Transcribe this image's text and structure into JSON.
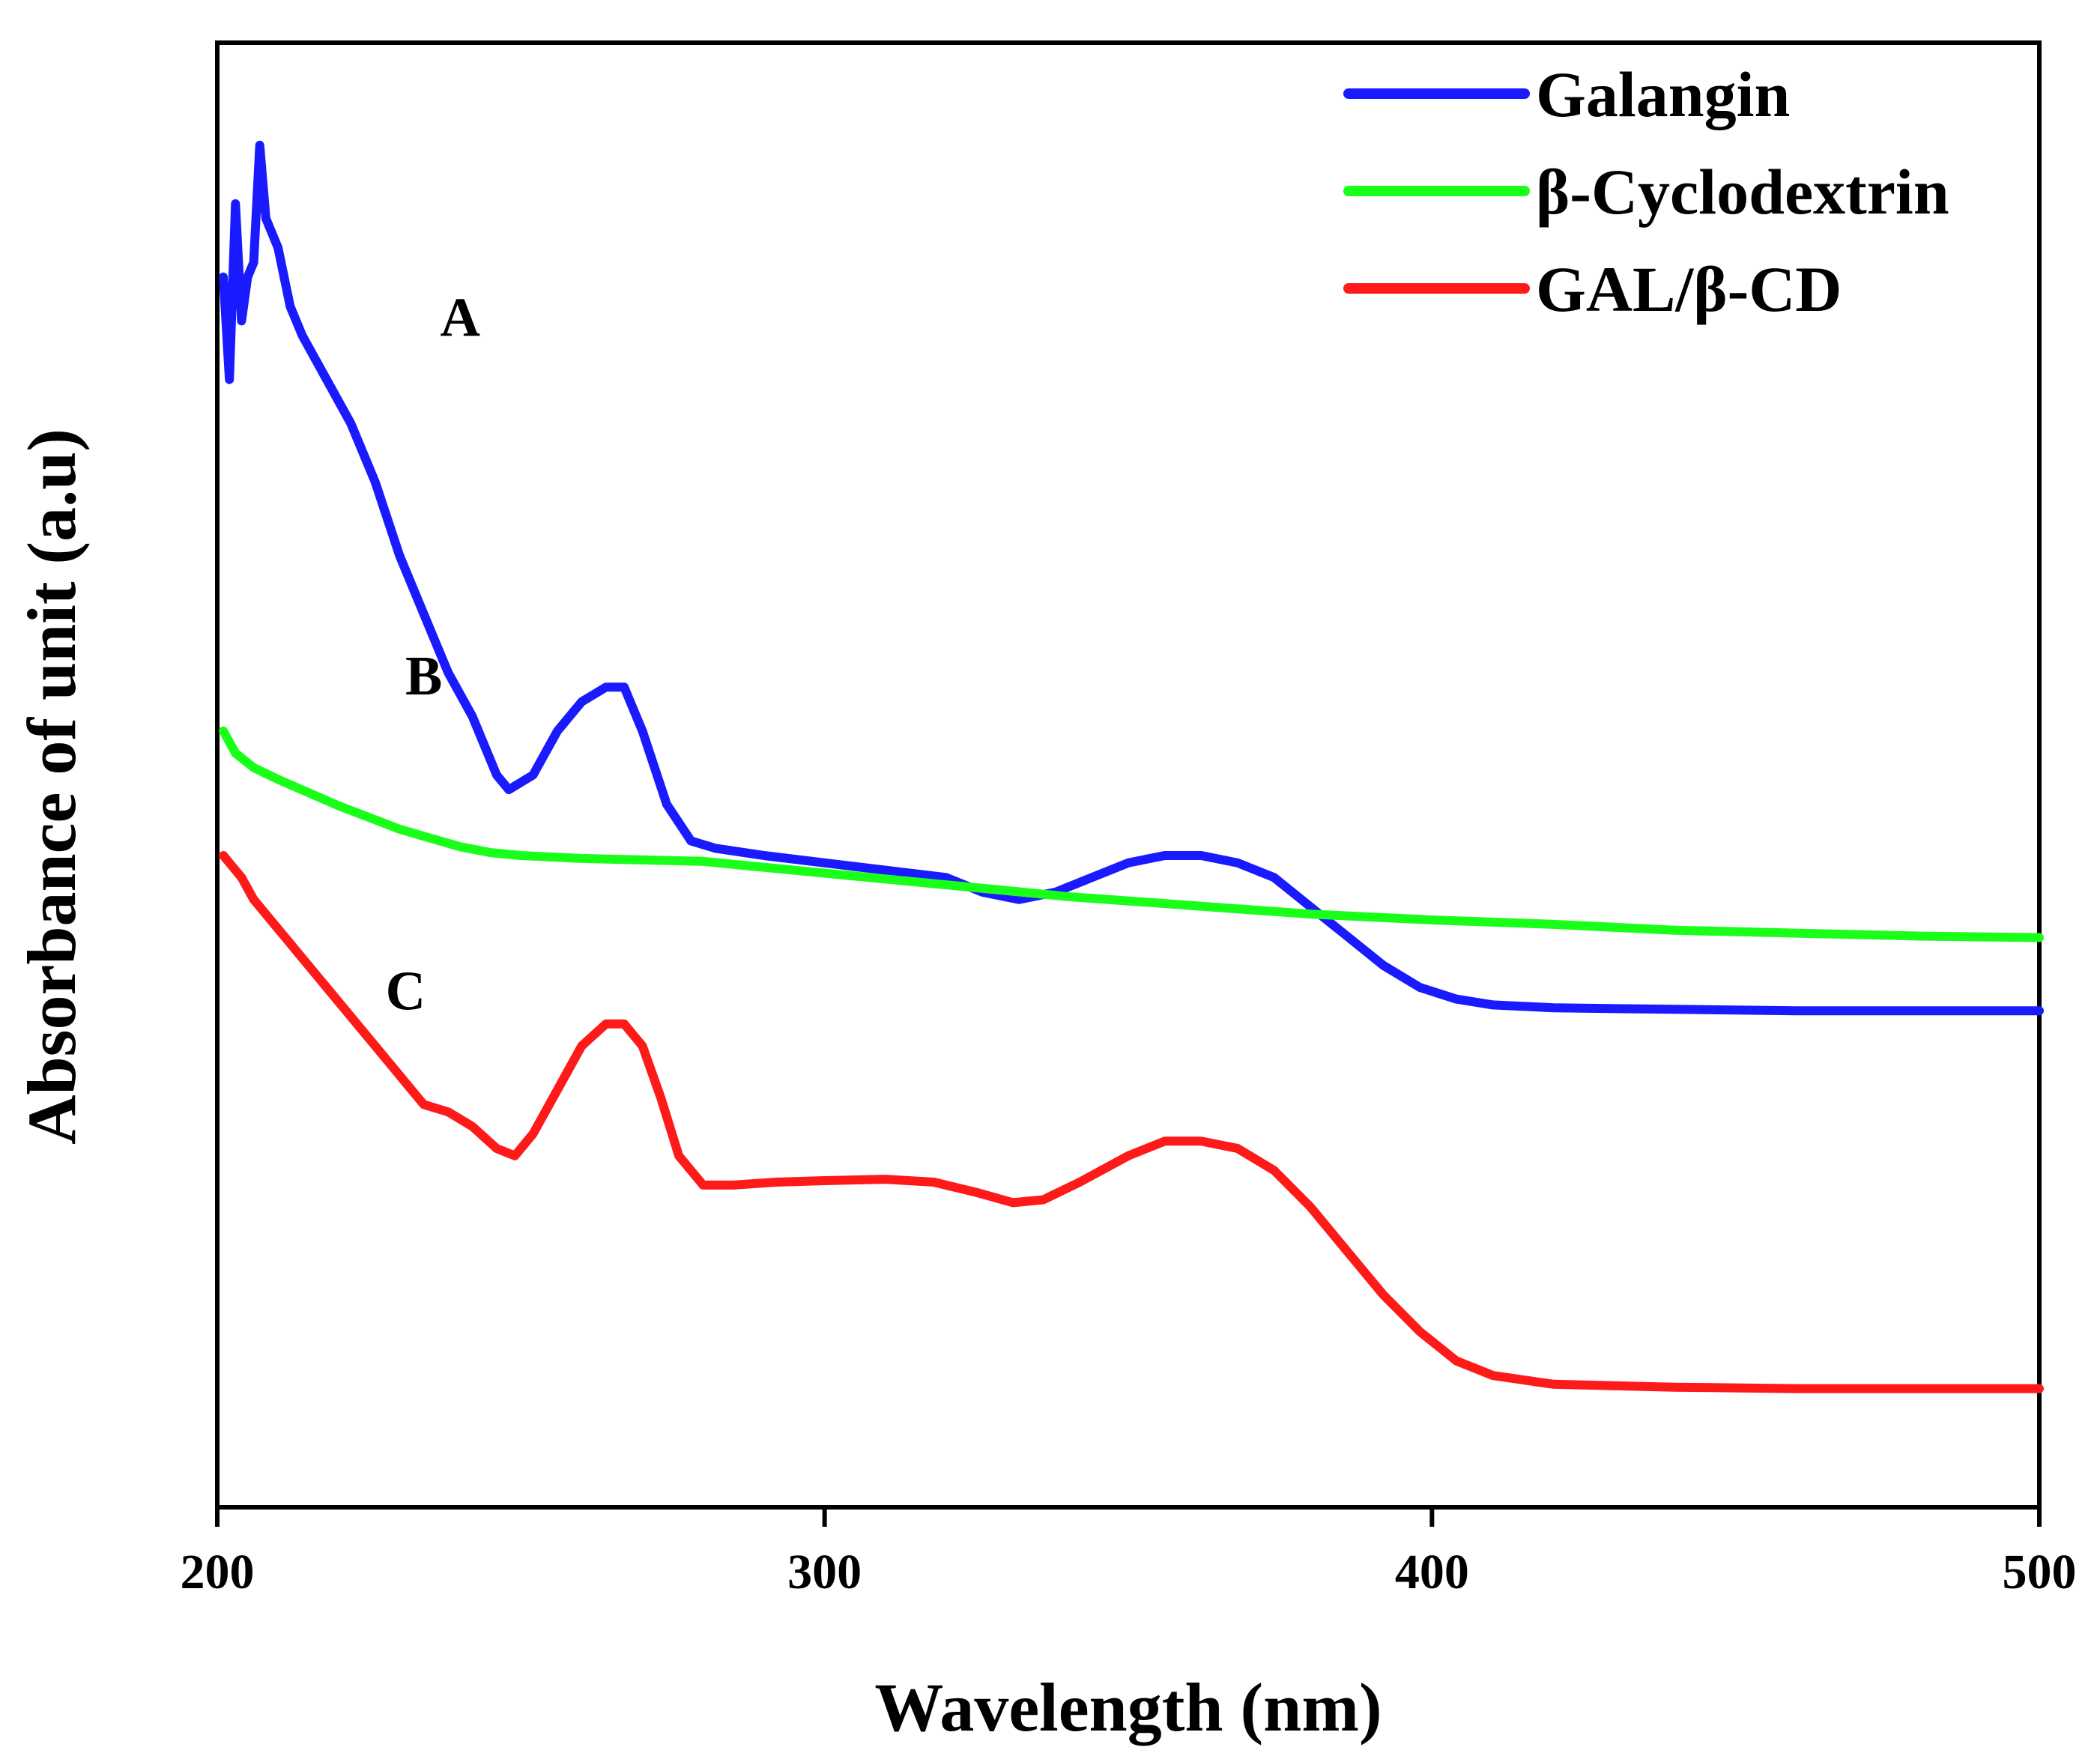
{
  "chart_data": {
    "type": "line",
    "title": "",
    "xlabel": "Wavelength (nm)",
    "ylabel": "Absorbance of unit (a.u)",
    "xlim": [
      200,
      500
    ],
    "ylim": [
      0,
      1
    ],
    "xticks": [
      200,
      300,
      400,
      500
    ],
    "grid": false,
    "legend_position": "top-right",
    "series": [
      {
        "name": "Galangin",
        "color": "#1a1aff",
        "label": "A",
        "label_at": [
          240,
          0.8
        ],
        "points": [
          [
            201,
            0.84
          ],
          [
            202,
            0.77
          ],
          [
            203,
            0.89
          ],
          [
            204,
            0.81
          ],
          [
            205,
            0.84
          ],
          [
            206,
            0.85
          ],
          [
            207,
            0.93
          ],
          [
            208,
            0.88
          ],
          [
            210,
            0.86
          ],
          [
            212,
            0.82
          ],
          [
            214,
            0.8
          ],
          [
            218,
            0.77
          ],
          [
            222,
            0.74
          ],
          [
            226,
            0.7
          ],
          [
            230,
            0.65
          ],
          [
            234,
            0.61
          ],
          [
            238,
            0.57
          ],
          [
            242,
            0.54
          ],
          [
            246,
            0.5
          ],
          [
            248,
            0.49
          ],
          [
            252,
            0.5
          ],
          [
            256,
            0.53
          ],
          [
            260,
            0.55
          ],
          [
            264,
            0.56
          ],
          [
            267,
            0.56
          ],
          [
            270,
            0.53
          ],
          [
            274,
            0.48
          ],
          [
            278,
            0.455
          ],
          [
            282,
            0.45
          ],
          [
            290,
            0.445
          ],
          [
            300,
            0.44
          ],
          [
            310,
            0.435
          ],
          [
            320,
            0.43
          ],
          [
            326,
            0.42
          ],
          [
            332,
            0.415
          ],
          [
            338,
            0.42
          ],
          [
            344,
            0.43
          ],
          [
            350,
            0.44
          ],
          [
            356,
            0.445
          ],
          [
            362,
            0.445
          ],
          [
            368,
            0.44
          ],
          [
            374,
            0.43
          ],
          [
            380,
            0.41
          ],
          [
            386,
            0.39
          ],
          [
            392,
            0.37
          ],
          [
            398,
            0.355
          ],
          [
            404,
            0.347
          ],
          [
            410,
            0.343
          ],
          [
            420,
            0.341
          ],
          [
            440,
            0.34
          ],
          [
            460,
            0.339
          ],
          [
            480,
            0.339
          ],
          [
            500,
            0.339
          ]
        ]
      },
      {
        "name": "β-Cyclodextrin",
        "color": "#1aff1a",
        "label": "B",
        "label_at": [
          234,
          0.555
        ],
        "points": [
          [
            201,
            0.53
          ],
          [
            203,
            0.515
          ],
          [
            206,
            0.505
          ],
          [
            210,
            0.497
          ],
          [
            215,
            0.488
          ],
          [
            220,
            0.479
          ],
          [
            225,
            0.471
          ],
          [
            230,
            0.463
          ],
          [
            235,
            0.457
          ],
          [
            240,
            0.451
          ],
          [
            245,
            0.447
          ],
          [
            250,
            0.445
          ],
          [
            260,
            0.443
          ],
          [
            270,
            0.442
          ],
          [
            280,
            0.441
          ],
          [
            290,
            0.437
          ],
          [
            300,
            0.433
          ],
          [
            310,
            0.429
          ],
          [
            320,
            0.425
          ],
          [
            330,
            0.421
          ],
          [
            340,
            0.417
          ],
          [
            350,
            0.414
          ],
          [
            360,
            0.411
          ],
          [
            370,
            0.408
          ],
          [
            380,
            0.405
          ],
          [
            400,
            0.401
          ],
          [
            420,
            0.398
          ],
          [
            440,
            0.394
          ],
          [
            460,
            0.392
          ],
          [
            480,
            0.39
          ],
          [
            500,
            0.389
          ]
        ]
      },
      {
        "name": "GAL/β-CD",
        "color": "#ff1a1a",
        "label": "C",
        "label_at": [
          231,
          0.34
        ],
        "points": [
          [
            201,
            0.445
          ],
          [
            202,
            0.44
          ],
          [
            204,
            0.43
          ],
          [
            206,
            0.415
          ],
          [
            210,
            0.395
          ],
          [
            215,
            0.37
          ],
          [
            220,
            0.345
          ],
          [
            225,
            0.32
          ],
          [
            230,
            0.295
          ],
          [
            234,
            0.275
          ],
          [
            238,
            0.27
          ],
          [
            242,
            0.26
          ],
          [
            246,
            0.245
          ],
          [
            249,
            0.24
          ],
          [
            252,
            0.255
          ],
          [
            256,
            0.285
          ],
          [
            260,
            0.315
          ],
          [
            264,
            0.33
          ],
          [
            267,
            0.33
          ],
          [
            270,
            0.315
          ],
          [
            273,
            0.28
          ],
          [
            276,
            0.24
          ],
          [
            280,
            0.22
          ],
          [
            285,
            0.22
          ],
          [
            292,
            0.222
          ],
          [
            300,
            0.223
          ],
          [
            310,
            0.224
          ],
          [
            318,
            0.222
          ],
          [
            325,
            0.215
          ],
          [
            331,
            0.208
          ],
          [
            336,
            0.21
          ],
          [
            342,
            0.222
          ],
          [
            350,
            0.24
          ],
          [
            356,
            0.25
          ],
          [
            362,
            0.25
          ],
          [
            368,
            0.245
          ],
          [
            374,
            0.23
          ],
          [
            380,
            0.205
          ],
          [
            386,
            0.175
          ],
          [
            392,
            0.145
          ],
          [
            398,
            0.12
          ],
          [
            404,
            0.1
          ],
          [
            410,
            0.09
          ],
          [
            420,
            0.084
          ],
          [
            440,
            0.082
          ],
          [
            460,
            0.081
          ],
          [
            480,
            0.081
          ],
          [
            500,
            0.081
          ]
        ]
      }
    ]
  }
}
